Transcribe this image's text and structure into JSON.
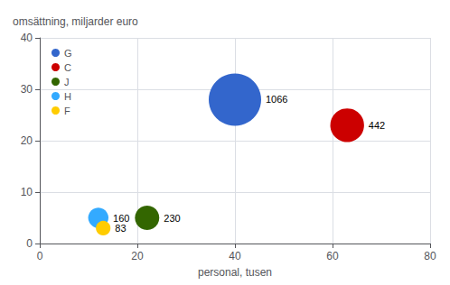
{
  "chart_data": {
    "type": "bubble",
    "xlabel": "personal, tusen",
    "ylabel": "omsättning, miljarder euro",
    "series": [
      {
        "name": "G",
        "color": "#3366cc",
        "x": [
          40
        ],
        "values": [
          28
        ],
        "size": [
          1066
        ]
      },
      {
        "name": "C",
        "color": "#cc0000",
        "x": [
          63
        ],
        "values": [
          23
        ],
        "size": [
          442
        ]
      },
      {
        "name": "J",
        "color": "#336600",
        "x": [
          22
        ],
        "values": [
          5
        ],
        "size": [
          230
        ]
      },
      {
        "name": "H",
        "color": "#33aaff",
        "x": [
          12
        ],
        "values": [
          5
        ],
        "size": [
          160
        ]
      },
      {
        "name": "F",
        "color": "#ffcc00",
        "x": [
          13
        ],
        "values": [
          3
        ],
        "size": [
          83
        ]
      }
    ],
    "xlim": [
      0,
      80
    ],
    "ylim": [
      0,
      40
    ],
    "xticks": [
      0,
      20,
      40,
      60,
      80
    ],
    "yticks": [
      0,
      10,
      20,
      30,
      40
    ],
    "grid": true,
    "legend": "upper left",
    "data_labels": true
  }
}
